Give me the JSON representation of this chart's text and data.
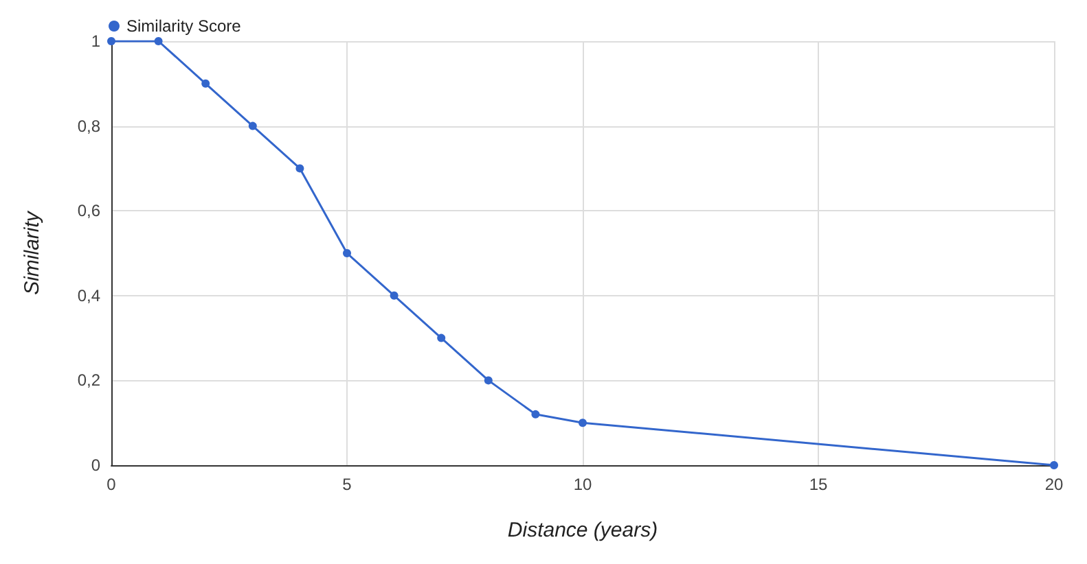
{
  "chart_data": {
    "type": "line",
    "xlabel": "Distance (years)",
    "ylabel": "Similarity",
    "x": [
      0,
      1,
      2,
      3,
      4,
      5,
      6,
      7,
      8,
      9,
      10,
      20
    ],
    "series": [
      {
        "name": "Similarity Score",
        "color": "#3366cc",
        "values": [
          1,
          1,
          0.9,
          0.8,
          0.7,
          0.5,
          0.4,
          0.3,
          0.2,
          0.12,
          0.1,
          0
        ]
      }
    ],
    "xlim": [
      0,
      20
    ],
    "xticks": [
      0,
      5,
      10,
      15,
      20
    ],
    "ylim": [
      0,
      1
    ],
    "yticks": [
      0,
      {
        "value": 0.2,
        "label": "0,2"
      },
      {
        "value": 0.4,
        "label": "0,4"
      },
      {
        "value": 0.6,
        "label": "0,6"
      },
      {
        "value": 0.8,
        "label": "0,8"
      },
      1
    ],
    "grid": true,
    "legend": "top left",
    "marker": "circle",
    "line_style": "solid"
  }
}
